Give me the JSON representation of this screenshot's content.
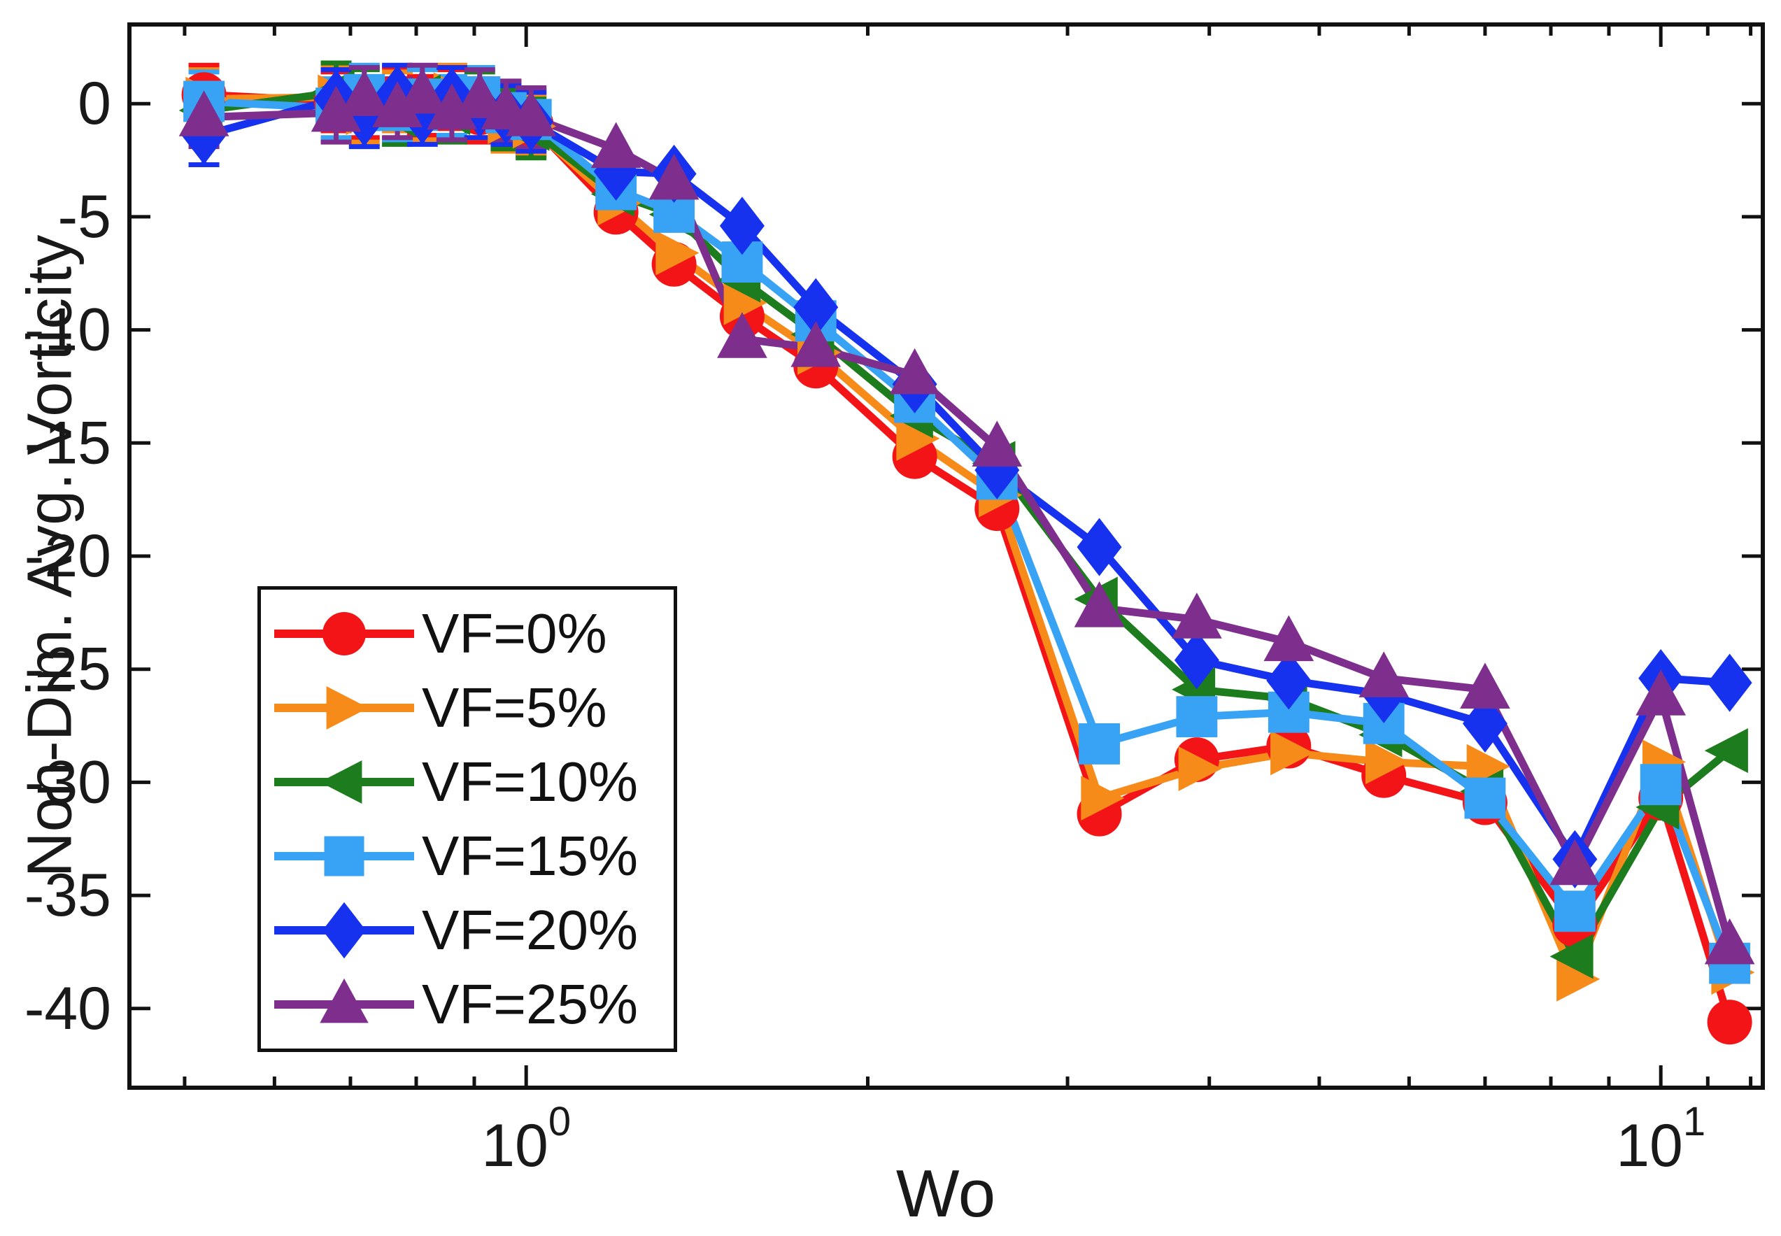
{
  "page": {
    "background": "#ffffff"
  },
  "chart_data": {
    "type": "line",
    "title": "",
    "xlabel": "Wo",
    "ylabel": "Non-Dim. Avg. Vorticity",
    "x_scale": "log",
    "xlim": [
      0.447,
      12.3
    ],
    "ylim": [
      -43.5,
      3.5
    ],
    "grid": false,
    "legend_position": "lower-left",
    "x_ticks": [
      {
        "base": "10",
        "exponent": "0",
        "value": 1
      },
      {
        "base": "10",
        "exponent": "1",
        "value": 10
      }
    ],
    "x_minor_ticks": [
      0.5,
      0.6,
      0.7,
      0.8,
      0.9,
      2,
      3,
      4,
      5,
      6,
      7,
      8,
      9,
      11,
      12
    ],
    "y_ticks": [
      0,
      -5,
      -10,
      -15,
      -20,
      -25,
      -30,
      -35,
      -40
    ],
    "error_bar_halfwidth": 1.3,
    "error_bar_points": 9,
    "x": [
      0.52,
      0.68,
      0.72,
      0.77,
      0.81,
      0.86,
      0.91,
      0.96,
      1.01,
      1.2,
      1.35,
      1.55,
      1.8,
      2.2,
      2.6,
      3.2,
      3.9,
      4.7,
      5.7,
      7.0,
      8.4,
      10.0,
      11.5
    ],
    "series": [
      {
        "name": "VF=0%",
        "marker": "circle",
        "color": "#f21416",
        "values": [
          0.4,
          0.1,
          -0.2,
          0.3,
          -0.1,
          0.2,
          -0.4,
          -0.6,
          -0.9,
          -4.8,
          -7.1,
          -9.4,
          -11.6,
          -15.6,
          -17.9,
          -31.4,
          -29.0,
          -28.4,
          -29.7,
          -30.9,
          -36.3,
          -30.7,
          -40.6
        ]
      },
      {
        "name": "VF=5%",
        "marker": "triangle-right",
        "color": "#f68b1a",
        "values": [
          0.2,
          0.3,
          -0.4,
          0.1,
          -0.3,
          0.4,
          -0.2,
          -0.8,
          -1.0,
          -4.4,
          -6.6,
          -8.8,
          -11.0,
          -14.8,
          -17.3,
          -30.7,
          -29.4,
          -28.7,
          -29.1,
          -29.3,
          -38.7,
          -29.1,
          -38.4
        ]
      },
      {
        "name": "VF=10%",
        "marker": "triangle-left",
        "color": "#1d7c1d",
        "values": [
          -0.3,
          0.5,
          0.2,
          -0.5,
          0.3,
          -0.4,
          0.1,
          -0.7,
          -1.1,
          -4.0,
          -4.9,
          -7.8,
          -10.2,
          -13.8,
          -15.9,
          -21.9,
          -25.9,
          -26.3,
          -27.9,
          -30.4,
          -37.7,
          -31.1,
          -28.6
        ]
      },
      {
        "name": "VF=15%",
        "marker": "square",
        "color": "#38a3f4",
        "values": [
          0.1,
          -0.2,
          0.4,
          -0.3,
          0.2,
          -0.1,
          0.3,
          -0.4,
          -0.7,
          -3.8,
          -4.8,
          -7.0,
          -9.6,
          -13.2,
          -16.6,
          -28.3,
          -27.1,
          -26.9,
          -27.4,
          -30.7,
          -35.7,
          -30.1,
          -38.0
        ]
      },
      {
        "name": "VF=20%",
        "marker": "diamond",
        "color": "#1632ef",
        "values": [
          -1.4,
          0.2,
          -0.6,
          0.4,
          -0.5,
          0.3,
          -0.2,
          -0.5,
          -0.8,
          -3.0,
          -3.1,
          -5.4,
          -9.0,
          -12.4,
          -16.2,
          -19.6,
          -24.6,
          -25.5,
          -26.1,
          -27.4,
          -33.4,
          -25.4,
          -25.6
        ]
      },
      {
        "name": "VF=25%",
        "marker": "triangle-up",
        "color": "#7e2f8e",
        "values": [
          -0.6,
          -0.4,
          0.3,
          -0.2,
          0.4,
          -0.3,
          0.2,
          -0.3,
          -0.6,
          -2.0,
          -3.4,
          -10.4,
          -10.8,
          -12.0,
          -15.2,
          -22.3,
          -22.8,
          -23.8,
          -25.4,
          -25.9,
          -33.7,
          -26.2,
          -37.2
        ]
      }
    ]
  }
}
